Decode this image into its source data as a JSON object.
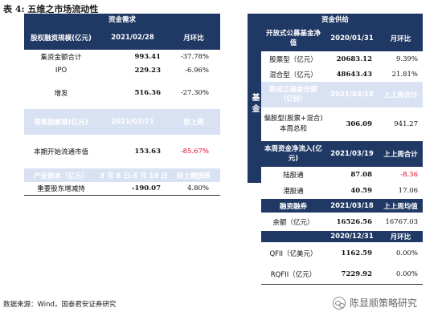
{
  "caption": "表 4:  五维之市场流动性",
  "left": {
    "title": "资金需求",
    "sections": [
      {
        "header": [
          "股权融资规模(亿元)",
          "2021/02/28",
          "月环比"
        ],
        "rows": [
          [
            "集资金额合计",
            "993.41",
            "-37.78%"
          ],
          [
            "IPO",
            "229.23",
            "-6.96%"
          ],
          [
            "增发",
            "516.36",
            "-27.30%"
          ]
        ]
      },
      {
        "header": [
          "限售股解禁(亿元)",
          "2021/03/21",
          "较上周"
        ],
        "rows": [
          [
            "本期开始流通市值",
            "153.63",
            "-85.67%"
          ]
        ]
      },
      {
        "header": [
          "产业资本（亿元）",
          "3 月 8 日-3 月 19 日",
          "较上期涨跌"
        ],
        "rows": [
          [
            "重要股东增减持",
            "-190.07",
            "4.80%"
          ]
        ]
      }
    ]
  },
  "right": {
    "title": "资金供给",
    "side_label": "基金",
    "sections": [
      {
        "header": [
          "开放式公募基金净值",
          "2020/01/31",
          "月环比"
        ],
        "rows": [
          [
            "股票型（亿元）",
            "20683.12",
            "9.39%"
          ],
          [
            "混合型（亿元）",
            "48643.43",
            "21.81%"
          ]
        ]
      },
      {
        "header": [
          "新成立基金份额（亿份）",
          "2021/03/18",
          "上上周合计"
        ],
        "rows": [
          [
            "偏股型(股票+混合)本周总和",
            "306.09",
            "941.27"
          ]
        ]
      },
      {
        "header": [
          "本周资金净流入(亿元)",
          "2021/03/19",
          "上上周合计"
        ],
        "rows": [
          [
            "陆股通",
            "87.08",
            "-8.36"
          ],
          [
            "港股通",
            "40.59",
            "17.06"
          ]
        ]
      },
      {
        "header": [
          "融资融券",
          "2021/03/18",
          "上上周均值"
        ],
        "rows": [
          [
            "余额（亿元）",
            "16526.56",
            "16767.03"
          ]
        ]
      },
      {
        "header": [
          "",
          "2020/12/31",
          "月环比"
        ],
        "rows": [
          [
            "QFII（亿美元）",
            "1162.59",
            "0.00%"
          ],
          [
            "RQFII（亿元）",
            "7229.92",
            "0.00%"
          ]
        ]
      }
    ]
  },
  "source": "数据来源：Wind，国泰君安证券研究",
  "watermark": "陈显顺策略研究",
  "colors": {
    "navy": "#1f3864",
    "light_blue": "#d9e2f3",
    "negative": "#d9001b"
  }
}
